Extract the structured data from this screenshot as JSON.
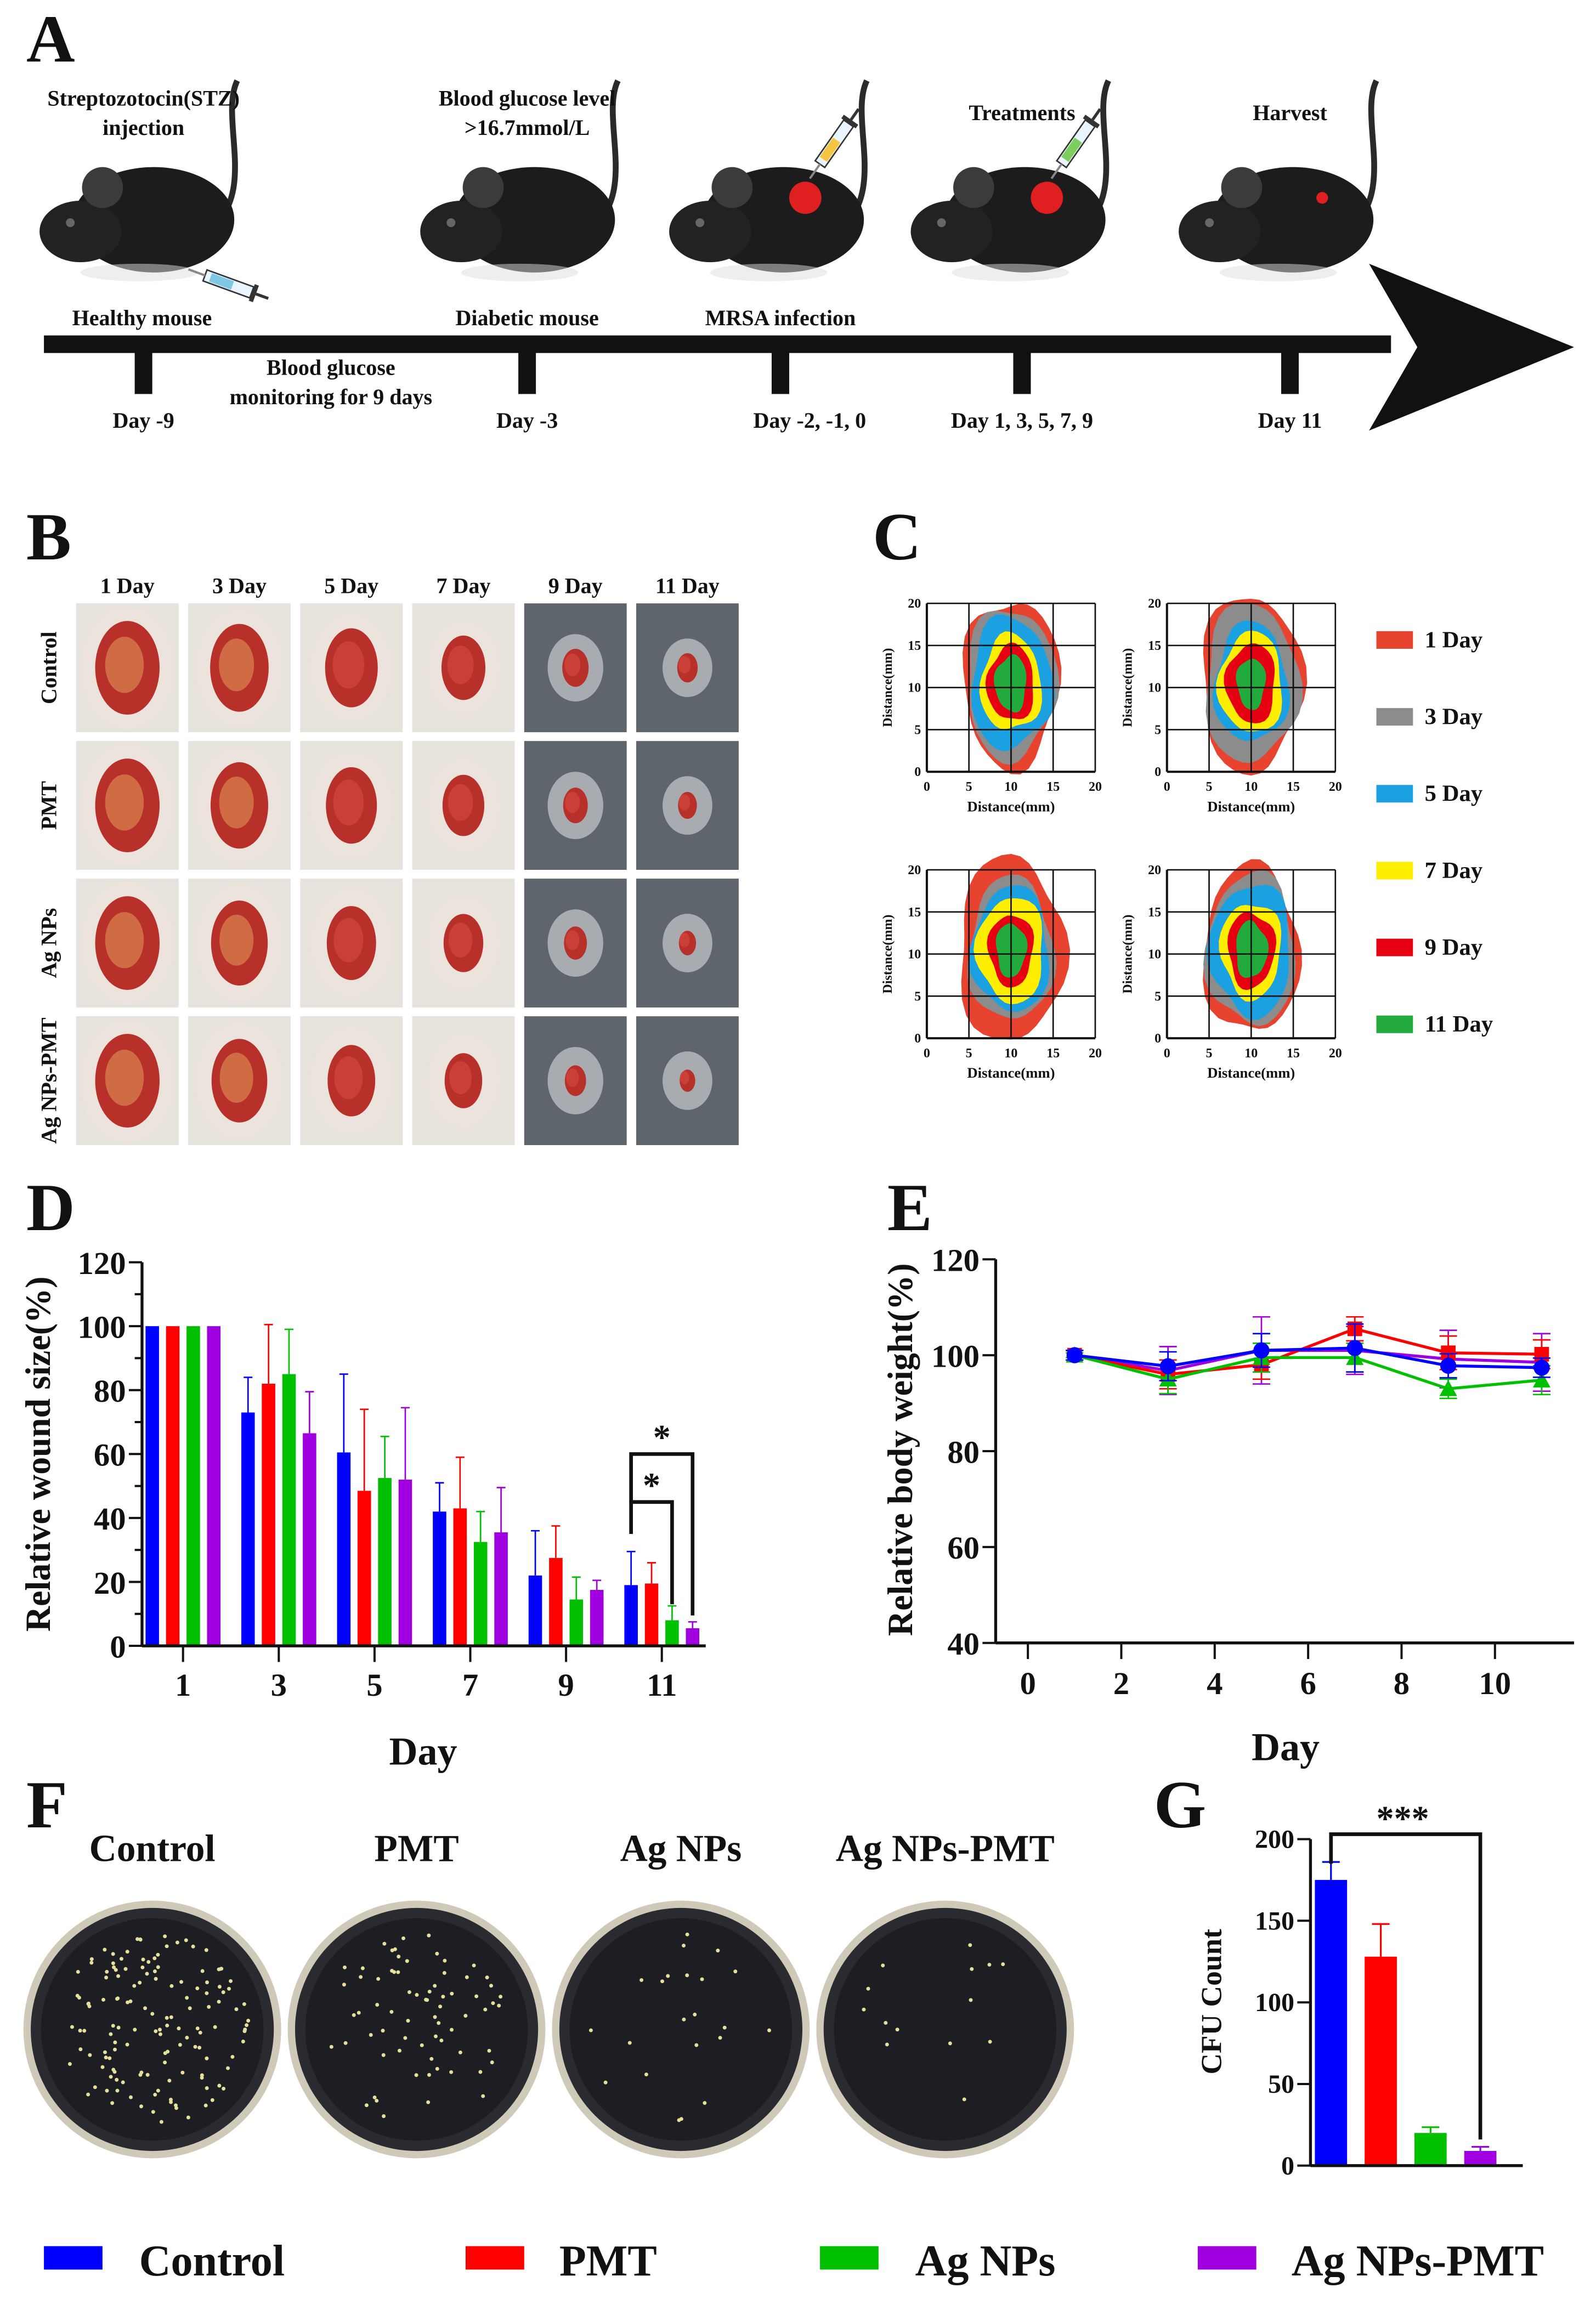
{
  "panels": {
    "a": "A",
    "b": "B",
    "c": "C",
    "d": "D",
    "e": "E",
    "f": "F",
    "g": "G"
  },
  "timeline": {
    "top_labels": [
      {
        "lines": [
          "Streptozotocin(STZ)",
          "injection"
        ]
      },
      {
        "lines": [
          "Blood glucose level",
          ">16.7mmol/L"
        ]
      },
      {
        "lines": [
          "Treatments"
        ]
      },
      {
        "lines": [
          "Harvest"
        ]
      }
    ],
    "stage_labels": [
      "Healthy mouse",
      "Diabetic mouse",
      "MRSA infection"
    ],
    "monitoring": [
      "Blood glucose",
      "monitoring for 9 days"
    ],
    "days": [
      "Day -9",
      "Day -3",
      "Day -2, -1, 0",
      "Day 1, 3, 5, 7, 9",
      "Day 11"
    ]
  },
  "photos": {
    "columns": [
      "1 Day",
      "3 Day",
      "5 Day",
      "7 Day",
      "9 Day",
      "11 Day"
    ],
    "rows": [
      "Control",
      "PMT",
      "Ag NPs",
      "Ag NPs-PMT"
    ]
  },
  "plates": {
    "labels": [
      "Control",
      "PMT",
      "Ag NPs",
      "Ag NPs-PMT"
    ]
  },
  "groups": [
    {
      "name": "Control",
      "color": "#0000ff"
    },
    {
      "name": "PMT",
      "color": "#ff0000"
    },
    {
      "name": "Ag NPs",
      "color": "#00c000"
    },
    {
      "name": "Ag NPs-PMT",
      "color": "#a000e0"
    }
  ],
  "chart_data": [
    {
      "id": "C",
      "type": "area",
      "xlabel": "Distance(mm)",
      "ylabel": "Distance(mm)",
      "xlim": [
        0,
        20
      ],
      "ylim": [
        0,
        20
      ],
      "ticks": [
        "0",
        "5",
        "10",
        "15",
        "20"
      ],
      "grid": true,
      "legend_placement": "right",
      "legend": [
        {
          "label": "1 Day",
          "color": "#e8432f"
        },
        {
          "label": "3 Day",
          "color": "#8c8c8c"
        },
        {
          "label": "5 Day",
          "color": "#1ba1e2"
        },
        {
          "label": "7 Day",
          "color": "#ffee00"
        },
        {
          "label": "9 Day",
          "color": "#e50012"
        },
        {
          "label": "11 Day",
          "color": "#22aa3c"
        }
      ]
    },
    {
      "id": "D",
      "type": "bar",
      "xlabel": "Day",
      "ylabel": "Relative wound size(%)",
      "categories": [
        "1",
        "3",
        "5",
        "7",
        "9",
        "11"
      ],
      "ylim": [
        0,
        120
      ],
      "yticks": [
        "0",
        "20",
        "40",
        "60",
        "80",
        "100",
        "120"
      ],
      "series": [
        {
          "name": "Control",
          "values": [
            100,
            73,
            60.5,
            42,
            22,
            19
          ],
          "error": [
            0,
            11,
            24.5,
            9,
            14,
            10.5
          ]
        },
        {
          "name": "PMT",
          "values": [
            100,
            82,
            48.5,
            43,
            27.5,
            19.5
          ],
          "error": [
            0,
            18.5,
            25.5,
            16,
            10,
            6.5
          ]
        },
        {
          "name": "Ag NPs",
          "values": [
            100,
            85,
            52.5,
            32.5,
            14.5,
            8
          ],
          "error": [
            0,
            14,
            13,
            9.5,
            7,
            4.5
          ]
        },
        {
          "name": "Ag NPs-PMT",
          "values": [
            100,
            66.5,
            52,
            35.5,
            17.5,
            5.5
          ],
          "error": [
            0,
            13,
            22.5,
            14,
            3,
            2
          ]
        }
      ],
      "annotations": [
        {
          "text": "*",
          "between": [
            "Control",
            "Ag NPs"
          ],
          "category": "11"
        },
        {
          "text": "*",
          "between": [
            "Control",
            "Ag NPs-PMT"
          ],
          "category": "11"
        }
      ]
    },
    {
      "id": "E",
      "type": "line",
      "xlabel": "Day",
      "ylabel": "Relative body weight(%)",
      "x": [
        1,
        3,
        5,
        7,
        9,
        11
      ],
      "xlim": [
        -1,
        12
      ],
      "xticks": [
        "0",
        "2",
        "4",
        "6",
        "8",
        "10"
      ],
      "ylim": [
        40,
        120
      ],
      "yticks": [
        "40",
        "60",
        "80",
        "100",
        "120"
      ],
      "series": [
        {
          "name": "Control",
          "marker": "circle",
          "values": [
            100,
            97.7,
            101,
            101.5,
            97.8,
            97.4
          ],
          "error": [
            1,
            3,
            3.5,
            5,
            2.5,
            2
          ]
        },
        {
          "name": "PMT",
          "marker": "square",
          "values": [
            100,
            96,
            98,
            105.5,
            100.5,
            100.2
          ],
          "error": [
            1,
            3,
            3,
            2.5,
            3.5,
            3
          ]
        },
        {
          "name": "Ag NPs",
          "marker": "triangle",
          "values": [
            100,
            95,
            99.5,
            99.5,
            93,
            94.8
          ],
          "error": [
            0.5,
            3,
            3,
            3,
            2,
            3
          ]
        },
        {
          "name": "Ag NPs-PMT",
          "marker": "none",
          "values": [
            100,
            96.8,
            101,
            101,
            99.2,
            98.5
          ],
          "error": [
            1,
            5,
            7,
            5,
            6,
            6
          ]
        }
      ]
    },
    {
      "id": "G",
      "type": "bar",
      "ylabel": "CFU Count",
      "categories": [
        "Control",
        "PMT",
        "Ag NPs",
        "Ag NPs-PMT"
      ],
      "values": [
        175,
        128,
        20,
        9
      ],
      "error": [
        11,
        20,
        3.5,
        2.5
      ],
      "ylim": [
        0,
        200
      ],
      "yticks": [
        "0",
        "50",
        "100",
        "150",
        "200"
      ],
      "annotations": [
        {
          "text": "***",
          "between": [
            "Control",
            "Ag NPs-PMT"
          ]
        }
      ]
    }
  ]
}
